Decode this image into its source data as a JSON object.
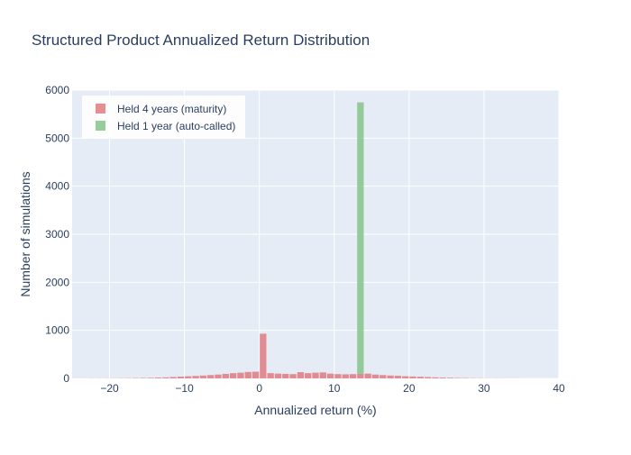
{
  "chart_data": {
    "type": "bar",
    "title": "Structured Product Annualized Return Distribution",
    "xlabel": "Annualized return (%)",
    "ylabel": "Number of simulations",
    "xlim": [
      -25,
      40
    ],
    "ylim": [
      0,
      6000
    ],
    "x_ticks": [
      -20,
      -10,
      0,
      10,
      20,
      30,
      40
    ],
    "y_ticks": [
      0,
      1000,
      2000,
      3000,
      4000,
      5000,
      6000
    ],
    "x_tick_labels": [
      "−20",
      "−10",
      "0",
      "10",
      "20",
      "30",
      "40"
    ],
    "y_tick_labels": [
      "0",
      "1000",
      "2000",
      "3000",
      "4000",
      "5000",
      "6000"
    ],
    "bin_width": 1,
    "grid": true,
    "barmode": "stack",
    "legend_position": "top-left",
    "colors": {
      "plot_bg": "#e5ecf6",
      "grid": "#ffffff",
      "text": "#2a3f5f"
    },
    "series": [
      {
        "name": "Held 4 years (maturity)",
        "color": "#e07b80",
        "x": [
          -25,
          -24,
          -23,
          -22,
          -21,
          -20,
          -19,
          -18,
          -17,
          -16,
          -15,
          -14,
          -13,
          -12,
          -11,
          -10,
          -9,
          -8,
          -7,
          -6,
          -5,
          -4,
          -3,
          -2,
          -1,
          0,
          1,
          2,
          3,
          4,
          5,
          6,
          7,
          8,
          9,
          10,
          11,
          12,
          13,
          14,
          15,
          16,
          17,
          18,
          19,
          20,
          21,
          22,
          23,
          24,
          25,
          26,
          27,
          28,
          29,
          30,
          31,
          32,
          33,
          34,
          35,
          36,
          37,
          38,
          39
        ],
        "values": [
          2,
          2,
          3,
          3,
          3,
          4,
          5,
          6,
          8,
          10,
          12,
          18,
          22,
          30,
          38,
          45,
          52,
          60,
          70,
          80,
          95,
          110,
          120,
          135,
          140,
          930,
          110,
          100,
          95,
          90,
          130,
          110,
          120,
          125,
          100,
          90,
          85,
          90,
          95,
          100,
          80,
          70,
          60,
          55,
          45,
          40,
          35,
          28,
          22,
          18,
          14,
          10,
          8,
          5,
          4,
          3,
          3,
          2,
          2,
          2,
          1,
          1,
          1,
          1,
          1
        ]
      },
      {
        "name": "Held 1 year (auto-called)",
        "color": "#86c38a",
        "x": [
          13
        ],
        "values": [
          5650
        ]
      }
    ]
  }
}
